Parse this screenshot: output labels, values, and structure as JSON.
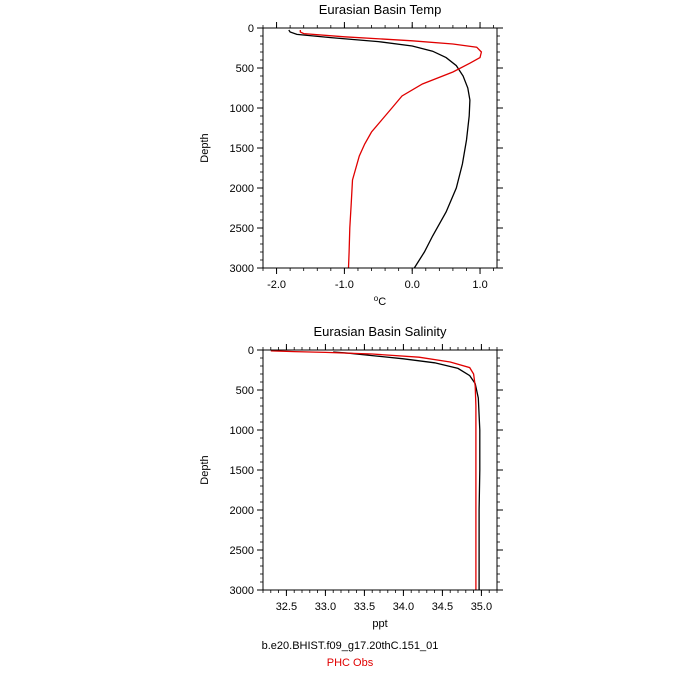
{
  "chart_data": [
    {
      "type": "line",
      "title": "Eurasian Basin Temp",
      "xlabel_sup": "o",
      "xlabel_main": "C",
      "ylabel": "Depth",
      "xlim": [
        -2.2,
        1.25
      ],
      "ylim": [
        3000,
        0
      ],
      "xticks": [
        -2.0,
        -1.0,
        0.0,
        1.0
      ],
      "xtick_labels": [
        "-2.0",
        "-1.0",
        "0.0",
        "1.0"
      ],
      "yticks": [
        0,
        500,
        1000,
        1500,
        2000,
        2500,
        3000
      ],
      "ytick_labels": [
        "0",
        "500",
        "1000",
        "1500",
        "2000",
        "2500",
        "3000"
      ],
      "grid": false,
      "series": [
        {
          "name": "b.e20.BHIST.f09_g17.20thC.151_01",
          "color": "#000000",
          "points": [
            [
              -1.82,
              25
            ],
            [
              -1.8,
              50
            ],
            [
              -1.7,
              80
            ],
            [
              -1.2,
              120
            ],
            [
              -0.5,
              170
            ],
            [
              0.0,
              225
            ],
            [
              0.3,
              290
            ],
            [
              0.5,
              370
            ],
            [
              0.65,
              470
            ],
            [
              0.75,
              600
            ],
            [
              0.82,
              750
            ],
            [
              0.85,
              900
            ],
            [
              0.84,
              1100
            ],
            [
              0.8,
              1400
            ],
            [
              0.74,
              1700
            ],
            [
              0.65,
              2000
            ],
            [
              0.5,
              2300
            ],
            [
              0.3,
              2600
            ],
            [
              0.18,
              2800
            ],
            [
              0.03,
              3000
            ]
          ]
        },
        {
          "name": "PHC Obs",
          "color": "#e00000",
          "points": [
            [
              -1.65,
              25
            ],
            [
              -1.65,
              50
            ],
            [
              -1.6,
              70
            ],
            [
              -1.0,
              110
            ],
            [
              0.0,
              160
            ],
            [
              0.6,
              200
            ],
            [
              0.95,
              240
            ],
            [
              1.02,
              300
            ],
            [
              1.0,
              370
            ],
            [
              0.85,
              440
            ],
            [
              0.6,
              550
            ],
            [
              0.15,
              700
            ],
            [
              -0.15,
              850
            ],
            [
              -0.3,
              1000
            ],
            [
              -0.45,
              1150
            ],
            [
              -0.6,
              1300
            ],
            [
              -0.7,
              1450
            ],
            [
              -0.78,
              1600
            ],
            [
              -0.88,
              1900
            ],
            [
              -0.9,
              2200
            ],
            [
              -0.92,
              2500
            ],
            [
              -0.93,
              2800
            ],
            [
              -0.94,
              3000
            ]
          ]
        }
      ]
    },
    {
      "type": "line",
      "title": "Eurasian Basin Salinity",
      "xlabel": "ppt",
      "ylabel": "Depth",
      "xlim": [
        32.2,
        35.2
      ],
      "ylim": [
        3000,
        0
      ],
      "xticks": [
        32.5,
        33.0,
        33.5,
        34.0,
        34.5,
        35.0
      ],
      "xtick_labels": [
        "32.5",
        "33.0",
        "33.5",
        "34.0",
        "34.5",
        "35.0"
      ],
      "yticks": [
        0,
        500,
        1000,
        1500,
        2000,
        2500,
        3000
      ],
      "ytick_labels": [
        "0",
        "500",
        "1000",
        "1500",
        "2000",
        "2500",
        "3000"
      ],
      "grid": false,
      "series": [
        {
          "name": "b.e20.BHIST.f09_g17.20thC.151_01",
          "color": "#000000",
          "points": [
            [
              33.1,
              25
            ],
            [
              33.3,
              40
            ],
            [
              33.6,
              70
            ],
            [
              34.0,
              110
            ],
            [
              34.4,
              160
            ],
            [
              34.7,
              230
            ],
            [
              34.85,
              320
            ],
            [
              34.92,
              420
            ],
            [
              34.96,
              600
            ],
            [
              34.98,
              1000
            ],
            [
              34.98,
              1500
            ],
            [
              34.97,
              2000
            ],
            [
              34.97,
              2500
            ],
            [
              34.97,
              3000
            ]
          ]
        },
        {
          "name": "PHC Obs",
          "color": "#e00000",
          "points": [
            [
              32.3,
              10
            ],
            [
              32.6,
              20
            ],
            [
              33.0,
              30
            ],
            [
              33.6,
              50
            ],
            [
              34.2,
              90
            ],
            [
              34.6,
              150
            ],
            [
              34.85,
              220
            ],
            [
              34.9,
              300
            ],
            [
              34.92,
              450
            ],
            [
              34.93,
              700
            ],
            [
              34.93,
              1000
            ],
            [
              34.93,
              2000
            ],
            [
              34.93,
              3000
            ]
          ]
        }
      ]
    }
  ],
  "legend": {
    "model": "b.e20.BHIST.f09_g17.20thC.151_01",
    "obs": "PHC Obs"
  }
}
